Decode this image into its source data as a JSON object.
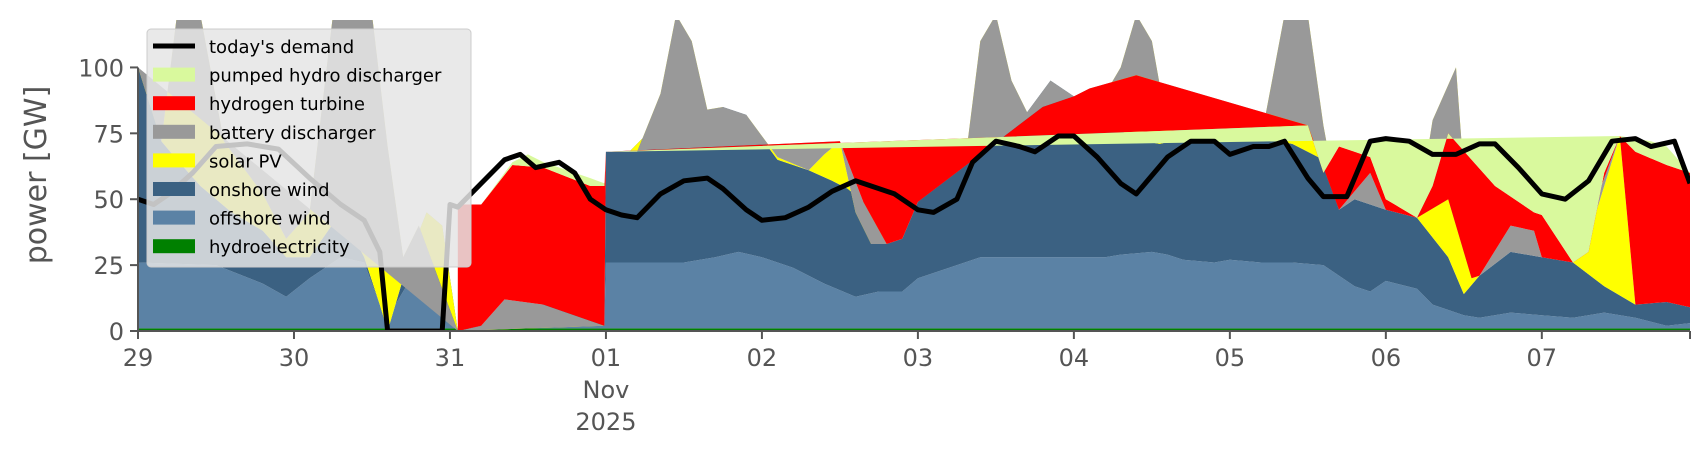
{
  "chart_data": {
    "type": "area",
    "ylabel": "power [GW]",
    "ylim": [
      0,
      118
    ],
    "y_ticks": [
      0,
      25,
      50,
      75,
      100
    ],
    "x_range_days": [
      0,
      9.95
    ],
    "x_ticks": [
      {
        "day": 0,
        "label": "29",
        "sub1": "",
        "sub2": ""
      },
      {
        "day": 1,
        "label": "30",
        "sub1": "",
        "sub2": ""
      },
      {
        "day": 2,
        "label": "31",
        "sub1": "",
        "sub2": ""
      },
      {
        "day": 3,
        "label": "01",
        "sub1": "Nov",
        "sub2": "2025"
      },
      {
        "day": 4,
        "label": "02",
        "sub1": "",
        "sub2": ""
      },
      {
        "day": 5,
        "label": "03",
        "sub1": "",
        "sub2": ""
      },
      {
        "day": 6,
        "label": "04",
        "sub1": "",
        "sub2": ""
      },
      {
        "day": 7,
        "label": "05",
        "sub1": "",
        "sub2": ""
      },
      {
        "day": 8,
        "label": "06",
        "sub1": "",
        "sub2": ""
      },
      {
        "day": 9,
        "label": "07",
        "sub1": "",
        "sub2": ""
      }
    ],
    "grid": false,
    "legend_position": "top-left",
    "legend": [
      {
        "name": "today's demand",
        "color": "#000000",
        "kind": "line"
      },
      {
        "name": "pumped hydro discharger",
        "color": "#d9f99d",
        "kind": "patch"
      },
      {
        "name": "hydrogen turbine",
        "color": "#ff0000",
        "kind": "patch"
      },
      {
        "name": "battery discharger",
        "color": "#999999",
        "kind": "patch"
      },
      {
        "name": "solar PV",
        "color": "#ffff00",
        "kind": "patch"
      },
      {
        "name": "onshore wind",
        "color": "#3b6182",
        "kind": "patch"
      },
      {
        "name": "offshore wind",
        "color": "#5b82a5",
        "kind": "patch"
      },
      {
        "name": "hydroelectricity",
        "color": "#008000",
        "kind": "patch"
      }
    ],
    "x_unit": "days since Oct 29 2025",
    "stack_order": [
      "hydroelectricity",
      "offshore wind",
      "onshore wind",
      "solar PV",
      "battery discharger",
      "hydrogen turbine",
      "pumped hydro discharger"
    ],
    "stack_tops": {
      "hydroelectricity": [
        [
          0,
          1
        ],
        [
          9.95,
          1
        ]
      ],
      "offshore wind": [
        [
          0,
          26
        ],
        [
          0.5,
          25
        ],
        [
          0.8,
          18
        ],
        [
          0.95,
          13
        ],
        [
          1.1,
          20
        ],
        [
          1.3,
          28
        ],
        [
          1.45,
          26
        ],
        [
          1.55,
          10
        ],
        [
          1.6,
          0
        ],
        [
          1.65,
          10
        ],
        [
          1.75,
          20
        ],
        [
          1.85,
          16
        ],
        [
          1.95,
          8
        ],
        [
          2.05,
          0
        ],
        [
          2.2,
          2
        ],
        [
          2.4,
          6
        ],
        [
          2.5,
          10
        ],
        [
          2.7,
          10
        ],
        [
          2.85,
          6
        ],
        [
          2.95,
          4
        ],
        [
          2.99,
          2
        ],
        [
          3.0,
          26
        ],
        [
          3.2,
          26
        ],
        [
          3.5,
          26
        ],
        [
          3.7,
          28
        ],
        [
          3.85,
          30
        ],
        [
          4.0,
          28
        ],
        [
          4.2,
          24
        ],
        [
          4.4,
          18
        ],
        [
          4.6,
          13
        ],
        [
          4.75,
          15
        ],
        [
          4.9,
          15
        ],
        [
          5.0,
          20
        ],
        [
          5.2,
          24
        ],
        [
          5.4,
          28
        ],
        [
          5.6,
          28
        ],
        [
          5.8,
          28
        ],
        [
          6.0,
          28
        ],
        [
          6.2,
          28
        ],
        [
          6.3,
          29
        ],
        [
          6.5,
          30
        ],
        [
          6.6,
          29
        ],
        [
          6.7,
          27
        ],
        [
          6.9,
          26
        ],
        [
          7.0,
          27
        ],
        [
          7.2,
          26
        ],
        [
          7.4,
          26
        ],
        [
          7.6,
          25
        ],
        [
          7.8,
          17
        ],
        [
          7.9,
          15
        ],
        [
          8.0,
          19
        ],
        [
          8.2,
          16
        ],
        [
          8.3,
          10
        ],
        [
          8.5,
          6
        ],
        [
          8.6,
          5
        ],
        [
          8.8,
          7
        ],
        [
          9.0,
          6
        ],
        [
          9.2,
          5
        ],
        [
          9.4,
          7
        ],
        [
          9.6,
          5
        ],
        [
          9.8,
          2
        ],
        [
          9.95,
          3
        ]
      ],
      "onshore wind": [
        [
          0,
          100
        ],
        [
          0.05,
          95
        ],
        [
          0.15,
          72
        ],
        [
          0.25,
          65
        ],
        [
          0.4,
          55
        ],
        [
          0.6,
          45
        ],
        [
          0.8,
          38
        ],
        [
          0.95,
          28
        ],
        [
          1.1,
          28
        ],
        [
          1.3,
          45
        ],
        [
          1.45,
          28
        ],
        [
          1.55,
          10
        ],
        [
          1.6,
          0
        ],
        [
          1.65,
          10
        ],
        [
          1.75,
          30
        ],
        [
          1.85,
          45
        ],
        [
          1.95,
          40
        ],
        [
          2.05,
          0
        ],
        [
          2.3,
          2
        ],
        [
          2.5,
          5
        ],
        [
          2.7,
          5
        ],
        [
          2.9,
          3
        ],
        [
          2.99,
          2
        ],
        [
          3.0,
          68
        ],
        [
          3.15,
          68
        ],
        [
          3.3,
          77
        ],
        [
          3.5,
          73
        ],
        [
          3.65,
          82
        ],
        [
          3.75,
          85
        ],
        [
          3.9,
          82
        ],
        [
          4.0,
          73
        ],
        [
          4.1,
          65
        ],
        [
          4.3,
          61
        ],
        [
          4.45,
          57
        ],
        [
          4.55,
          54
        ],
        [
          4.65,
          49
        ],
        [
          4.8,
          33
        ],
        [
          4.9,
          35
        ],
        [
          5.0,
          49
        ],
        [
          5.1,
          55
        ],
        [
          5.3,
          63
        ],
        [
          5.5,
          72
        ],
        [
          5.7,
          83
        ],
        [
          5.85,
          95
        ],
        [
          6.0,
          89
        ],
        [
          6.15,
          85
        ],
        [
          6.3,
          76
        ],
        [
          6.45,
          72
        ],
        [
          6.55,
          71
        ],
        [
          6.7,
          73
        ],
        [
          6.9,
          73
        ],
        [
          7.0,
          74
        ],
        [
          7.2,
          73
        ],
        [
          7.4,
          71
        ],
        [
          7.6,
          65
        ],
        [
          7.7,
          46
        ],
        [
          7.8,
          50
        ],
        [
          7.9,
          48
        ],
        [
          8.0,
          46
        ],
        [
          8.2,
          43
        ],
        [
          8.4,
          28
        ],
        [
          8.5,
          14
        ],
        [
          8.6,
          21
        ],
        [
          8.8,
          30
        ],
        [
          9.0,
          28
        ],
        [
          9.2,
          26
        ],
        [
          9.4,
          17
        ],
        [
          9.6,
          10
        ],
        [
          9.8,
          11
        ],
        [
          9.95,
          9
        ]
      ],
      "solar PV": [
        [
          0,
          100
        ],
        [
          0.15,
          72
        ],
        [
          0.25,
          120
        ],
        [
          0.4,
          120
        ],
        [
          0.55,
          72
        ],
        [
          0.8,
          52
        ],
        [
          0.95,
          35
        ],
        [
          1.1,
          45
        ],
        [
          1.25,
          120
        ],
        [
          1.5,
          120
        ],
        [
          1.6,
          70
        ],
        [
          1.7,
          28
        ],
        [
          1.8,
          40
        ],
        [
          2.05,
          0
        ],
        [
          2.99,
          2
        ],
        [
          3.0,
          68
        ],
        [
          3.2,
          68
        ],
        [
          3.35,
          90
        ],
        [
          3.45,
          120
        ],
        [
          3.55,
          110
        ],
        [
          3.65,
          84
        ],
        [
          3.75,
          85
        ],
        [
          3.9,
          82
        ],
        [
          4.1,
          66
        ],
        [
          4.3,
          61
        ],
        [
          4.4,
          67
        ],
        [
          4.5,
          72
        ],
        [
          4.6,
          45
        ],
        [
          4.7,
          33
        ],
        [
          4.8,
          33
        ],
        [
          4.9,
          35
        ],
        [
          5.0,
          49
        ],
        [
          5.1,
          55
        ],
        [
          5.3,
          63
        ],
        [
          5.4,
          110
        ],
        [
          5.5,
          120
        ],
        [
          5.6,
          95
        ],
        [
          5.7,
          83
        ],
        [
          5.85,
          95
        ],
        [
          6.0,
          89
        ],
        [
          6.15,
          85
        ],
        [
          6.3,
          100
        ],
        [
          6.4,
          120
        ],
        [
          6.5,
          110
        ],
        [
          6.6,
          77
        ],
        [
          6.7,
          73
        ],
        [
          6.9,
          73
        ],
        [
          7.0,
          74
        ],
        [
          7.2,
          73
        ],
        [
          7.35,
          120
        ],
        [
          7.5,
          120
        ],
        [
          7.6,
          78
        ],
        [
          7.7,
          46
        ],
        [
          7.8,
          50
        ],
        [
          8.0,
          46
        ],
        [
          8.2,
          43
        ],
        [
          8.3,
          80
        ],
        [
          8.45,
          100
        ],
        [
          8.55,
          20
        ],
        [
          8.6,
          21
        ],
        [
          8.8,
          30
        ],
        [
          9.0,
          28
        ],
        [
          9.2,
          26
        ],
        [
          9.3,
          36
        ],
        [
          9.5,
          74
        ],
        [
          9.6,
          10
        ],
        [
          9.8,
          11
        ],
        [
          9.95,
          9
        ]
      ],
      "battery discharger": [
        [
          0,
          100
        ],
        [
          2.05,
          0
        ],
        [
          2.2,
          2
        ],
        [
          2.35,
          12
        ],
        [
          2.6,
          10
        ],
        [
          2.99,
          2
        ],
        [
          3.0,
          68
        ],
        [
          4.5,
          72
        ],
        [
          4.65,
          49
        ],
        [
          4.8,
          33
        ],
        [
          4.9,
          35
        ],
        [
          5.0,
          49
        ],
        [
          5.8,
          85
        ],
        [
          6.0,
          89
        ],
        [
          6.1,
          92
        ],
        [
          6.4,
          97
        ],
        [
          7.5,
          78
        ],
        [
          7.7,
          46
        ],
        [
          7.9,
          60
        ],
        [
          8.0,
          46
        ],
        [
          8.2,
          43
        ],
        [
          8.4,
          50
        ],
        [
          8.55,
          20
        ],
        [
          8.6,
          21
        ],
        [
          8.8,
          40
        ],
        [
          8.95,
          38
        ],
        [
          9.0,
          28
        ],
        [
          9.2,
          26
        ],
        [
          9.5,
          74
        ],
        [
          9.6,
          10
        ],
        [
          9.8,
          11
        ],
        [
          9.95,
          9
        ]
      ],
      "hydrogen turbine": [
        [
          0,
          100
        ],
        [
          2.05,
          0
        ],
        [
          2.05,
          48
        ],
        [
          2.2,
          48
        ],
        [
          2.4,
          63
        ],
        [
          2.6,
          62
        ],
        [
          2.9,
          55
        ],
        [
          2.99,
          55
        ],
        [
          3.0,
          68
        ],
        [
          7.5,
          78
        ],
        [
          7.6,
          60
        ],
        [
          7.7,
          70
        ],
        [
          7.8,
          68
        ],
        [
          7.9,
          66
        ],
        [
          8.0,
          50
        ],
        [
          8.2,
          43
        ],
        [
          8.3,
          55
        ],
        [
          8.4,
          75
        ],
        [
          8.55,
          65
        ],
        [
          8.7,
          55
        ],
        [
          8.95,
          45
        ],
        [
          9.0,
          44
        ],
        [
          9.2,
          26
        ],
        [
          9.3,
          30
        ],
        [
          9.4,
          60
        ],
        [
          9.5,
          74
        ],
        [
          9.6,
          68
        ],
        [
          9.8,
          63
        ],
        [
          9.95,
          60
        ]
      ],
      "pumped hydro discharger": [
        [
          0,
          100
        ],
        [
          2.05,
          0
        ],
        [
          2.05,
          48
        ],
        [
          2.2,
          48
        ],
        [
          2.4,
          64
        ],
        [
          2.5,
          67
        ],
        [
          2.6,
          64
        ],
        [
          2.9,
          58
        ],
        [
          2.99,
          56
        ],
        [
          3.0,
          68
        ],
        [
          9.5,
          74
        ],
        [
          9.7,
          72
        ],
        [
          9.8,
          70
        ],
        [
          9.95,
          60
        ]
      ]
    },
    "series": [
      {
        "name": "today's demand",
        "x": [
          0,
          0.1,
          0.2,
          0.35,
          0.5,
          0.7,
          0.9,
          1.1,
          1.3,
          1.45,
          1.55,
          1.6,
          1.7,
          1.8,
          1.95,
          2.0,
          2.05,
          2.2,
          2.35,
          2.45,
          2.55,
          2.7,
          2.8,
          2.9,
          3.0,
          3.1,
          3.2,
          3.35,
          3.5,
          3.65,
          3.75,
          3.9,
          4.0,
          4.15,
          4.3,
          4.45,
          4.6,
          4.7,
          4.85,
          5.0,
          5.1,
          5.25,
          5.35,
          5.5,
          5.65,
          5.75,
          5.9,
          6.0,
          6.15,
          6.3,
          6.4,
          6.6,
          6.75,
          6.9,
          7.0,
          7.15,
          7.25,
          7.35,
          7.5,
          7.6,
          7.75,
          7.9,
          8.0,
          8.15,
          8.3,
          8.45,
          8.6,
          8.7,
          8.85,
          9.0,
          9.15,
          9.3,
          9.45,
          9.6,
          9.7,
          9.85,
          9.95
        ],
        "values": [
          50,
          48,
          52,
          60,
          70,
          71,
          69,
          58,
          48,
          42,
          30,
          0,
          0,
          0,
          0,
          48,
          47,
          56,
          65,
          67,
          62,
          64,
          60,
          50,
          46,
          44,
          43,
          52,
          57,
          58,
          54,
          46,
          42,
          43,
          47,
          53,
          57,
          55,
          52,
          46,
          45,
          50,
          64,
          72,
          70,
          68,
          74,
          74,
          66,
          56,
          52,
          66,
          72,
          72,
          67,
          70,
          70,
          72,
          58,
          51,
          51,
          72,
          73,
          72,
          67,
          67,
          71,
          71,
          62,
          52,
          50,
          57,
          72,
          73,
          70,
          72,
          56
        ]
      }
    ]
  }
}
